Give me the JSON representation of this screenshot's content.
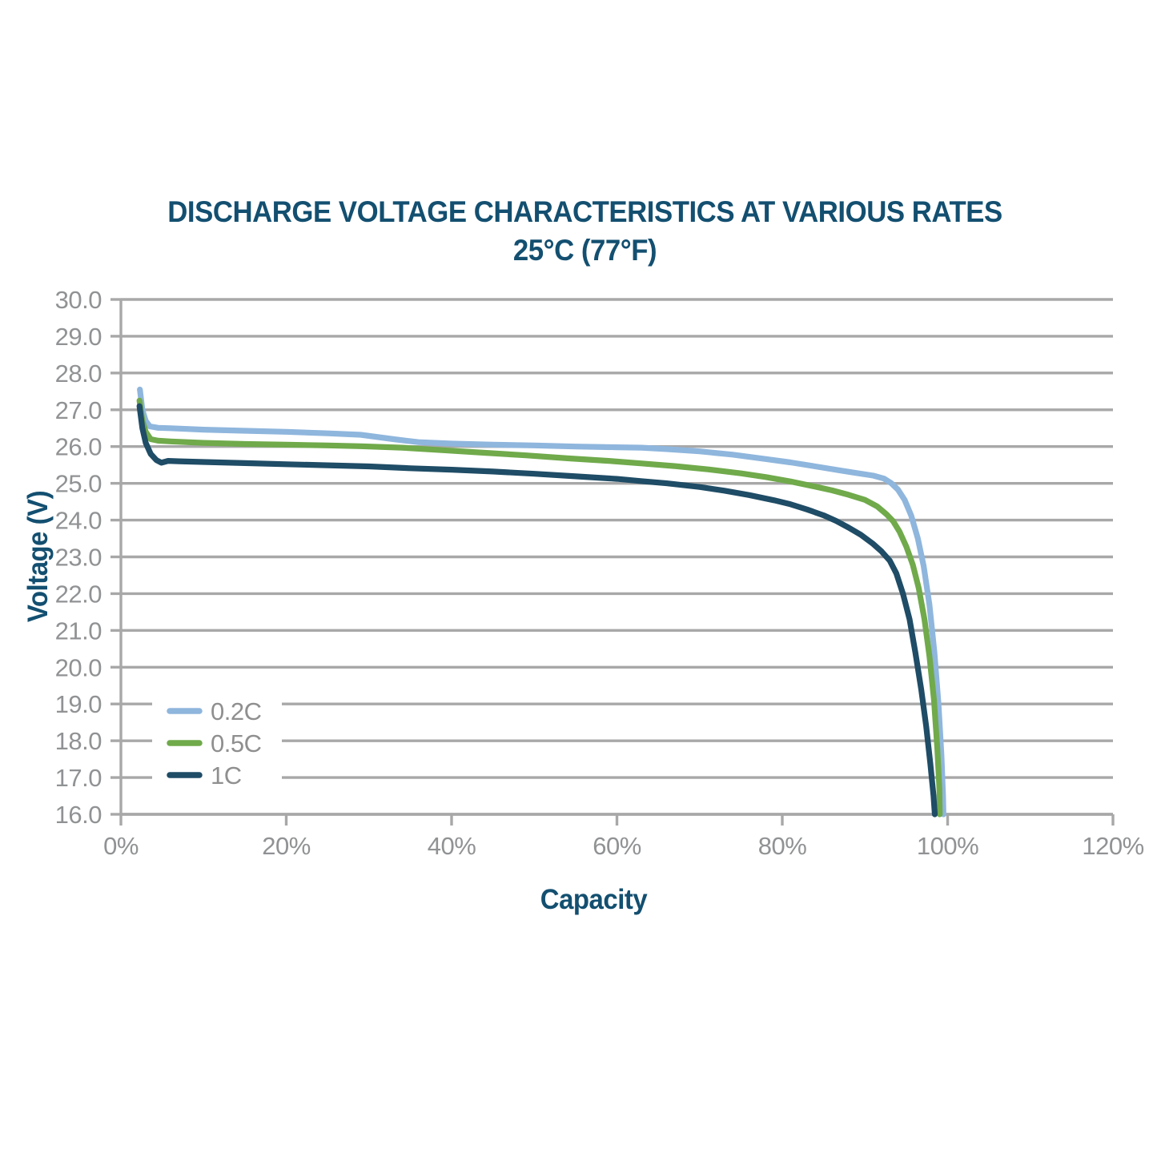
{
  "chart_data": {
    "type": "line",
    "title": "DISCHARGE VOLTAGE CHARACTERISTICS AT VARIOUS RATES",
    "subtitle": "25°C (77°F)",
    "xlabel": "Capacity",
    "ylabel": "Voltage (V)",
    "xlim": [
      0,
      120
    ],
    "ylim": [
      16,
      30
    ],
    "grid": "horizontal",
    "legend_position": "inside-lower-left",
    "x_ticks": [
      {
        "value": 0,
        "label": "0%"
      },
      {
        "value": 20,
        "label": "20%"
      },
      {
        "value": 40,
        "label": "40%"
      },
      {
        "value": 60,
        "label": "60%"
      },
      {
        "value": 80,
        "label": "80%"
      },
      {
        "value": 100,
        "label": "100%"
      },
      {
        "value": 120,
        "label": "120%"
      }
    ],
    "y_ticks": [
      {
        "value": 30,
        "label": "30.0"
      },
      {
        "value": 29,
        "label": "29.0"
      },
      {
        "value": 28,
        "label": "28.0"
      },
      {
        "value": 27,
        "label": "27.0"
      },
      {
        "value": 26,
        "label": "26.0"
      },
      {
        "value": 25,
        "label": "25.0"
      },
      {
        "value": 24,
        "label": "24.0"
      },
      {
        "value": 23,
        "label": "23.0"
      },
      {
        "value": 22,
        "label": "22.0"
      },
      {
        "value": 21,
        "label": "21.0"
      },
      {
        "value": 20,
        "label": "20.0"
      },
      {
        "value": 19,
        "label": "19.0"
      },
      {
        "value": 18,
        "label": "18.0"
      },
      {
        "value": 17,
        "label": "17.0"
      },
      {
        "value": 16,
        "label": "16.0"
      }
    ],
    "colors": {
      "heading": "#134f70",
      "grid": "#a8a8a8",
      "axis": "#a8a8a8",
      "tick_text": "#909294",
      "legend_text": "#8f8f8f",
      "legend_bg": "#ffffff"
    },
    "series": [
      {
        "name": "0.2C",
        "color": "#8fb6dd",
        "points": [
          [
            2.3,
            27.55
          ],
          [
            2.6,
            27.0
          ],
          [
            3.0,
            26.7
          ],
          [
            3.5,
            26.55
          ],
          [
            4.5,
            26.51
          ],
          [
            6,
            26.5
          ],
          [
            10,
            26.46
          ],
          [
            15,
            26.43
          ],
          [
            20,
            26.4
          ],
          [
            25,
            26.36
          ],
          [
            29,
            26.32
          ],
          [
            33,
            26.2
          ],
          [
            36,
            26.12
          ],
          [
            40,
            26.08
          ],
          [
            45,
            26.05
          ],
          [
            50,
            26.03
          ],
          [
            55,
            26.0
          ],
          [
            60,
            25.98
          ],
          [
            63,
            25.97
          ],
          [
            66,
            25.93
          ],
          [
            70,
            25.87
          ],
          [
            74,
            25.78
          ],
          [
            78,
            25.66
          ],
          [
            81,
            25.57
          ],
          [
            84,
            25.46
          ],
          [
            87,
            25.35
          ],
          [
            89,
            25.28
          ],
          [
            91,
            25.21
          ],
          [
            92.3,
            25.13
          ],
          [
            93.2,
            25.0
          ],
          [
            94,
            24.83
          ],
          [
            94.8,
            24.55
          ],
          [
            95.6,
            24.12
          ],
          [
            96.4,
            23.5
          ],
          [
            97.1,
            22.75
          ],
          [
            97.8,
            21.7
          ],
          [
            98.4,
            20.4
          ],
          [
            98.9,
            19.0
          ],
          [
            99.25,
            17.6
          ],
          [
            99.45,
            16.5
          ],
          [
            99.5,
            16.0
          ]
        ]
      },
      {
        "name": "0.5C",
        "color": "#70aa4b",
        "points": [
          [
            2.25,
            27.25
          ],
          [
            2.6,
            26.7
          ],
          [
            3.0,
            26.4
          ],
          [
            3.6,
            26.2
          ],
          [
            4.5,
            26.16
          ],
          [
            6,
            26.14
          ],
          [
            10,
            26.1
          ],
          [
            15,
            26.07
          ],
          [
            20,
            26.05
          ],
          [
            25,
            26.03
          ],
          [
            29,
            26.01
          ],
          [
            34,
            25.97
          ],
          [
            39,
            25.9
          ],
          [
            44,
            25.83
          ],
          [
            49,
            25.76
          ],
          [
            54,
            25.68
          ],
          [
            59,
            25.61
          ],
          [
            63,
            25.54
          ],
          [
            67,
            25.47
          ],
          [
            71,
            25.38
          ],
          [
            75,
            25.27
          ],
          [
            78,
            25.17
          ],
          [
            81,
            25.05
          ],
          [
            84,
            24.91
          ],
          [
            86,
            24.81
          ],
          [
            88,
            24.69
          ],
          [
            90,
            24.55
          ],
          [
            91.5,
            24.37
          ],
          [
            92.6,
            24.16
          ],
          [
            93.4,
            23.97
          ],
          [
            94.2,
            23.68
          ],
          [
            95,
            23.28
          ],
          [
            95.8,
            22.78
          ],
          [
            96.5,
            22.15
          ],
          [
            97.2,
            21.3
          ],
          [
            97.8,
            20.3
          ],
          [
            98.35,
            19.1
          ],
          [
            98.75,
            17.8
          ],
          [
            99.0,
            16.7
          ],
          [
            99.05,
            16.0
          ]
        ]
      },
      {
        "name": "1C",
        "color": "#1f4c66",
        "points": [
          [
            2.25,
            27.1
          ],
          [
            2.6,
            26.5
          ],
          [
            3.0,
            26.1
          ],
          [
            3.6,
            25.8
          ],
          [
            4.3,
            25.63
          ],
          [
            4.9,
            25.56
          ],
          [
            5.7,
            25.61
          ],
          [
            7,
            25.6
          ],
          [
            10,
            25.58
          ],
          [
            15,
            25.55
          ],
          [
            20,
            25.52
          ],
          [
            25,
            25.49
          ],
          [
            30,
            25.46
          ],
          [
            35,
            25.41
          ],
          [
            40,
            25.37
          ],
          [
            45,
            25.32
          ],
          [
            50,
            25.26
          ],
          [
            55,
            25.19
          ],
          [
            60,
            25.12
          ],
          [
            63,
            25.06
          ],
          [
            66,
            25.0
          ],
          [
            70,
            24.9
          ],
          [
            73,
            24.8
          ],
          [
            76,
            24.68
          ],
          [
            79,
            24.54
          ],
          [
            81,
            24.43
          ],
          [
            83,
            24.29
          ],
          [
            85,
            24.13
          ],
          [
            86.5,
            23.98
          ],
          [
            88,
            23.8
          ],
          [
            89.5,
            23.6
          ],
          [
            91,
            23.35
          ],
          [
            92,
            23.15
          ],
          [
            93,
            22.9
          ],
          [
            93.8,
            22.55
          ],
          [
            94.6,
            22.0
          ],
          [
            95.4,
            21.3
          ],
          [
            96.1,
            20.4
          ],
          [
            96.8,
            19.4
          ],
          [
            97.4,
            18.4
          ],
          [
            97.9,
            17.4
          ],
          [
            98.3,
            16.5
          ],
          [
            98.45,
            16.0
          ]
        ]
      }
    ],
    "legend": [
      {
        "label": "0.2C",
        "color": "#8fb6dd"
      },
      {
        "label": "0.5C",
        "color": "#70aa4b"
      },
      {
        "label": "1C",
        "color": "#1f4c66"
      }
    ]
  }
}
